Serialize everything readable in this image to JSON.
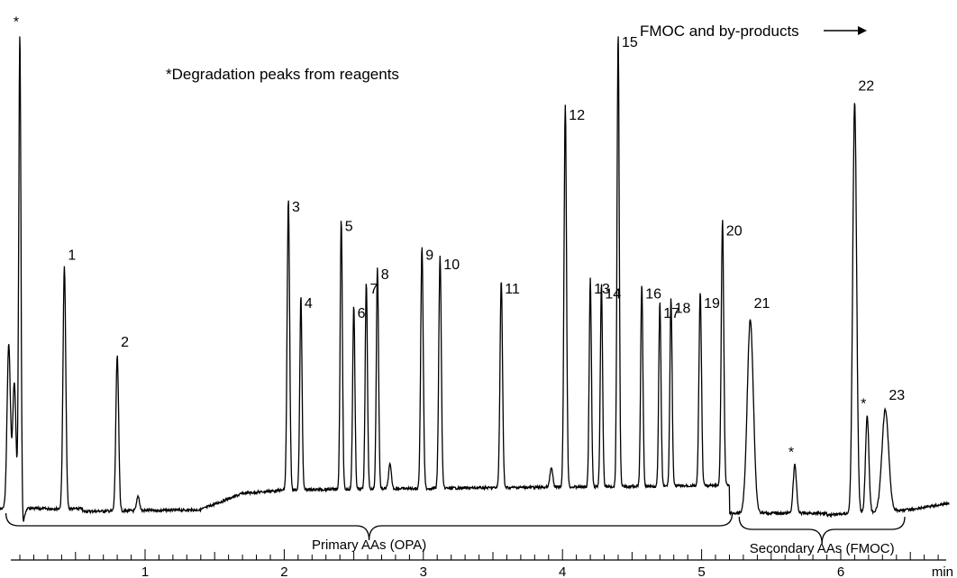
{
  "chart_data": {
    "type": "line",
    "xlabel": "min",
    "xlim": [
      -0.2,
      6.8
    ],
    "ylim": [
      0,
      100
    ],
    "x_ticks": [
      {
        "value": 1,
        "label": "1"
      },
      {
        "value": 2,
        "label": "2"
      },
      {
        "value": 3,
        "label": "3"
      },
      {
        "value": 4,
        "label": "4"
      },
      {
        "value": 5,
        "label": "5"
      },
      {
        "value": 6,
        "label": "6"
      }
    ],
    "peaks": [
      {
        "label": "",
        "x": 0.02,
        "height": 34,
        "width": 0.012
      },
      {
        "label": "",
        "x": 0.06,
        "height": 26,
        "width": 0.012
      },
      {
        "label": "*",
        "x": 0.1,
        "height": 99,
        "width": 0.008
      },
      {
        "label": "1",
        "x": 0.42,
        "height": 50,
        "width": 0.01
      },
      {
        "label": "2",
        "x": 0.8,
        "height": 32,
        "width": 0.01
      },
      {
        "label": "",
        "x": 0.95,
        "height": 3,
        "width": 0.01
      },
      {
        "label": "3",
        "x": 2.03,
        "height": 60,
        "width": 0.009
      },
      {
        "label": "4",
        "x": 2.12,
        "height": 40,
        "width": 0.008
      },
      {
        "label": "5",
        "x": 2.41,
        "height": 56,
        "width": 0.008
      },
      {
        "label": "6",
        "x": 2.5,
        "height": 38,
        "width": 0.008
      },
      {
        "label": "7",
        "x": 2.59,
        "height": 43,
        "width": 0.008
      },
      {
        "label": "8",
        "x": 2.67,
        "height": 46,
        "width": 0.008
      },
      {
        "label": "",
        "x": 2.76,
        "height": 5,
        "width": 0.01
      },
      {
        "label": "9",
        "x": 2.99,
        "height": 50,
        "width": 0.009
      },
      {
        "label": "10",
        "x": 3.12,
        "height": 48,
        "width": 0.009
      },
      {
        "label": "11",
        "x": 3.56,
        "height": 43,
        "width": 0.009
      },
      {
        "label": "",
        "x": 3.92,
        "height": 4,
        "width": 0.01
      },
      {
        "label": "12",
        "x": 4.02,
        "height": 79,
        "width": 0.009
      },
      {
        "label": "13",
        "x": 4.2,
        "height": 43,
        "width": 0.008
      },
      {
        "label": "14",
        "x": 4.28,
        "height": 42,
        "width": 0.008
      },
      {
        "label": "15",
        "x": 4.4,
        "height": 94,
        "width": 0.008
      },
      {
        "label": "16",
        "x": 4.57,
        "height": 42,
        "width": 0.008
      },
      {
        "label": "17",
        "x": 4.7,
        "height": 38,
        "width": 0.008
      },
      {
        "label": "18",
        "x": 4.78,
        "height": 39,
        "width": 0.008
      },
      {
        "label": "19",
        "x": 4.99,
        "height": 40,
        "width": 0.009
      },
      {
        "label": "20",
        "x": 5.15,
        "height": 55,
        "width": 0.009
      },
      {
        "label": "21",
        "x": 5.35,
        "height": 40,
        "width": 0.022
      },
      {
        "label": "*",
        "x": 5.67,
        "height": 10,
        "width": 0.012
      },
      {
        "label": "22",
        "x": 6.1,
        "height": 85,
        "width": 0.014
      },
      {
        "label": "*",
        "x": 6.19,
        "height": 20,
        "width": 0.012
      },
      {
        "label": "23",
        "x": 6.32,
        "height": 21,
        "width": 0.024
      }
    ],
    "annotations": [
      {
        "text": "*Degradation peaks from reagents"
      },
      {
        "text": "FMOC and by-products"
      }
    ],
    "brackets": [
      {
        "label": "Primary AAs (OPA)",
        "from": 0.0,
        "to": 5.22
      },
      {
        "label": "Secondary AAs (FMOC)",
        "from": 5.27,
        "to": 6.46
      }
    ]
  }
}
